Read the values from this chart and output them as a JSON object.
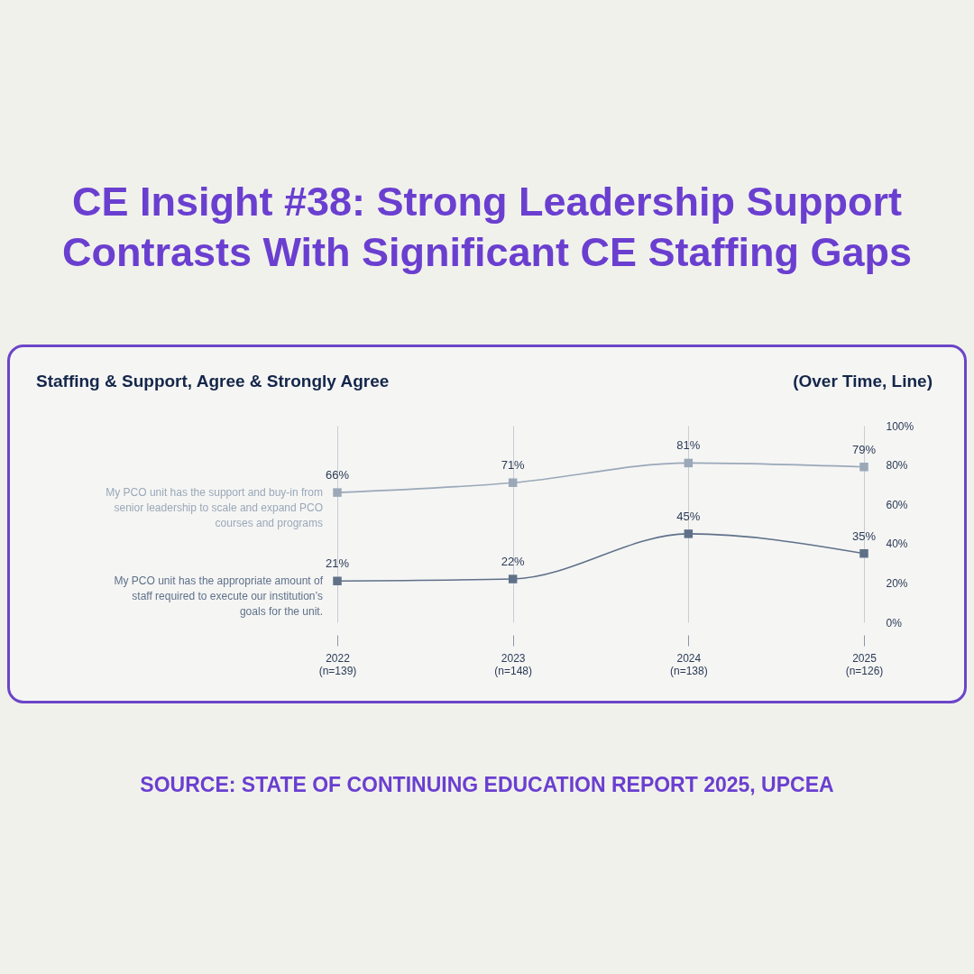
{
  "chart_data": {
    "type": "line",
    "title": "CE Insight #38: Strong Leadership Support Contrasts With Significant CE Staffing Gaps",
    "subtitle": "Staffing & Support, Agree & Strongly Agree",
    "annotations": [
      "(Over Time, Line)",
      "SOURCE: STATE OF CONTINUING EDUCATION REPORT 2025, UPCEA"
    ],
    "categories": [
      "2022\n(n=139)",
      "2023\n(n=148)",
      "2024\n(n=138)",
      "2025\n(n=126)"
    ],
    "series": [
      {
        "name": "My PCO unit has the support and buy-in from senior leadership to scale and expand PCO courses and programs",
        "color": "#9aa8b8",
        "values": [
          66,
          71,
          81,
          79
        ],
        "value_labels": [
          "66%",
          "71%",
          "81%",
          "79%"
        ]
      },
      {
        "name": "My PCO unit has the appropriate amount of staff required to execute our institution’s goals for the unit.",
        "color": "#5f7189",
        "values": [
          21,
          22,
          45,
          35
        ],
        "value_labels": [
          "21%",
          "22%",
          "45%",
          "35%"
        ]
      }
    ],
    "ylim": [
      0,
      100
    ],
    "yticks": [
      {
        "value": 0,
        "label": "0%"
      },
      {
        "value": 20,
        "label": "20%"
      },
      {
        "value": 40,
        "label": "40%"
      },
      {
        "value": 60,
        "label": "60%"
      },
      {
        "value": 80,
        "label": "80%"
      },
      {
        "value": 100,
        "label": "100%"
      }
    ],
    "grid": "x",
    "marker": "square",
    "line_style": "solid",
    "legend": false
  }
}
